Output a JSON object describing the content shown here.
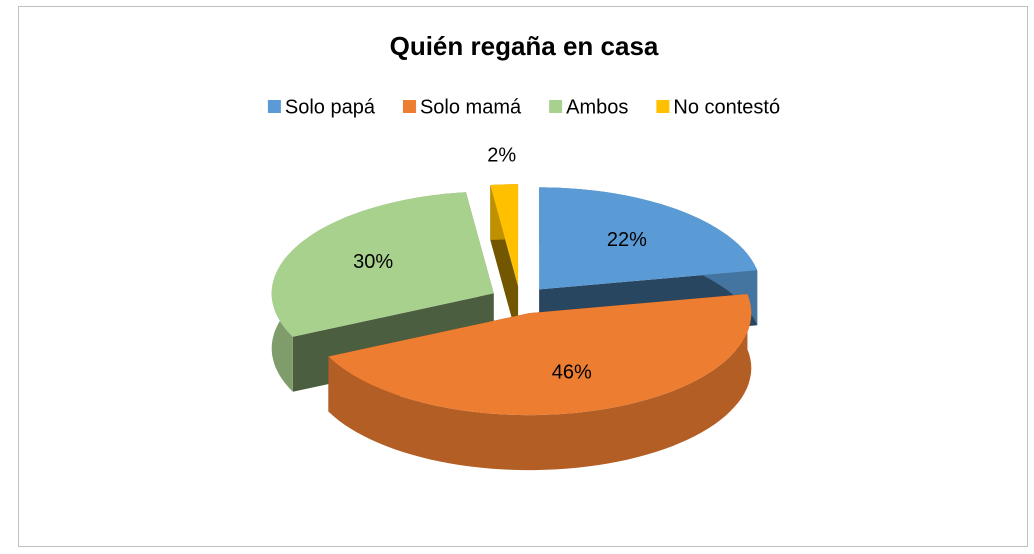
{
  "chart_data": {
    "type": "pie",
    "title": "Quién regaña en casa",
    "categories": [
      "Solo papá",
      "Solo mamá",
      "Ambos",
      "No contestó"
    ],
    "values": [
      22,
      46,
      30,
      2
    ],
    "value_labels": [
      "22%",
      "46%",
      "30%",
      "2%"
    ],
    "colors": [
      "#5b9bd5",
      "#ed7d31",
      "#a9d18e",
      "#ffc000"
    ],
    "legend": "top"
  }
}
